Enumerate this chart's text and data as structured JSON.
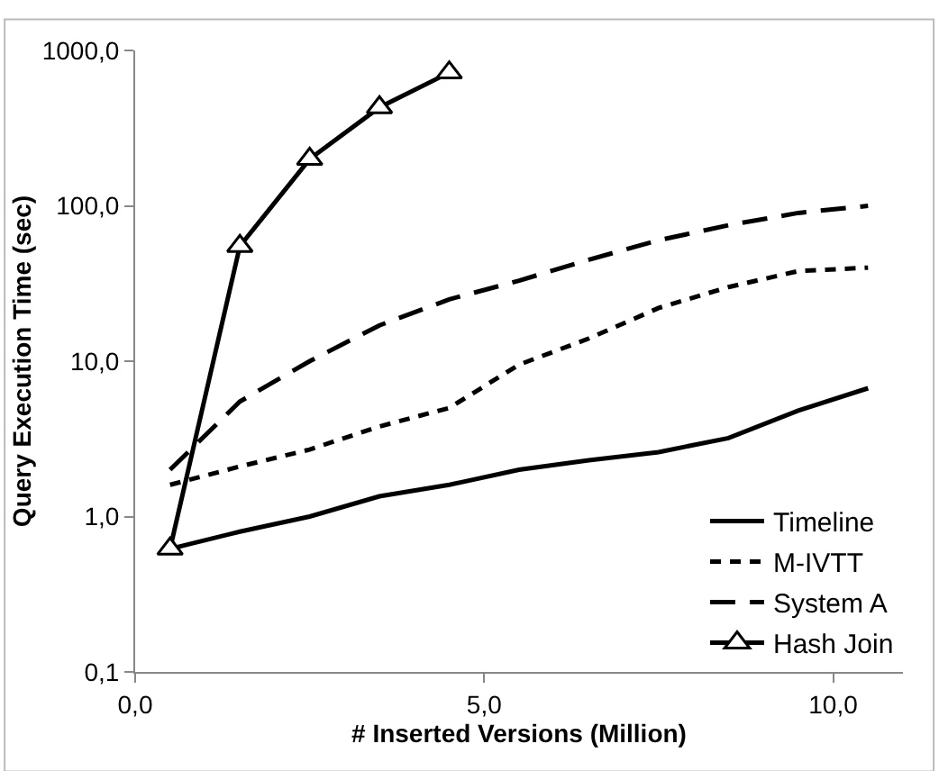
{
  "chart_data": {
    "type": "line",
    "xlabel": "# Inserted Versions (Million)",
    "ylabel": "Query Execution Time (sec)",
    "x": [
      0.5,
      1.5,
      2.5,
      3.5,
      4.5,
      5.5,
      6.5,
      7.5,
      8.5,
      9.5,
      10.5
    ],
    "series": [
      {
        "name": "Timeline",
        "color": "#000000",
        "line_style": "solid",
        "marker": "none",
        "values": [
          0.62,
          0.8,
          1.0,
          1.35,
          1.6,
          2.0,
          2.3,
          2.6,
          3.2,
          4.8,
          6.7
        ]
      },
      {
        "name": "M-IVTT",
        "color": "#000000",
        "line_style": "dotted",
        "marker": "none",
        "values": [
          1.6,
          2.1,
          2.7,
          3.8,
          5.0,
          9.5,
          14,
          22,
          30,
          38,
          40
        ]
      },
      {
        "name": "System A",
        "color": "#000000",
        "line_style": "dashed",
        "marker": "none",
        "values": [
          2.0,
          5.5,
          10,
          17,
          25,
          33,
          45,
          60,
          75,
          90,
          100
        ]
      },
      {
        "name": "Hash Join",
        "color": "#000000",
        "line_style": "solid",
        "marker": "triangle",
        "values": [
          0.62,
          55,
          200,
          430,
          720,
          null,
          null,
          null,
          null,
          null,
          null
        ]
      }
    ],
    "log": "y",
    "grid": false,
    "legend": "bottom right",
    "xlim": [
      0,
      11
    ],
    "xticks": [
      {
        "value": 0,
        "label": "0,0"
      },
      {
        "value": 5,
        "label": "5,0"
      },
      {
        "value": 10,
        "label": "10,0"
      }
    ],
    "ylim": [
      0.1,
      1000
    ],
    "yticks": [
      {
        "value": 0.1,
        "label": "0,1"
      },
      {
        "value": 1,
        "label": "1,0"
      },
      {
        "value": 10,
        "label": "10,0"
      },
      {
        "value": 100,
        "label": "100,0"
      },
      {
        "value": 1000,
        "label": "1000,0"
      }
    ]
  }
}
